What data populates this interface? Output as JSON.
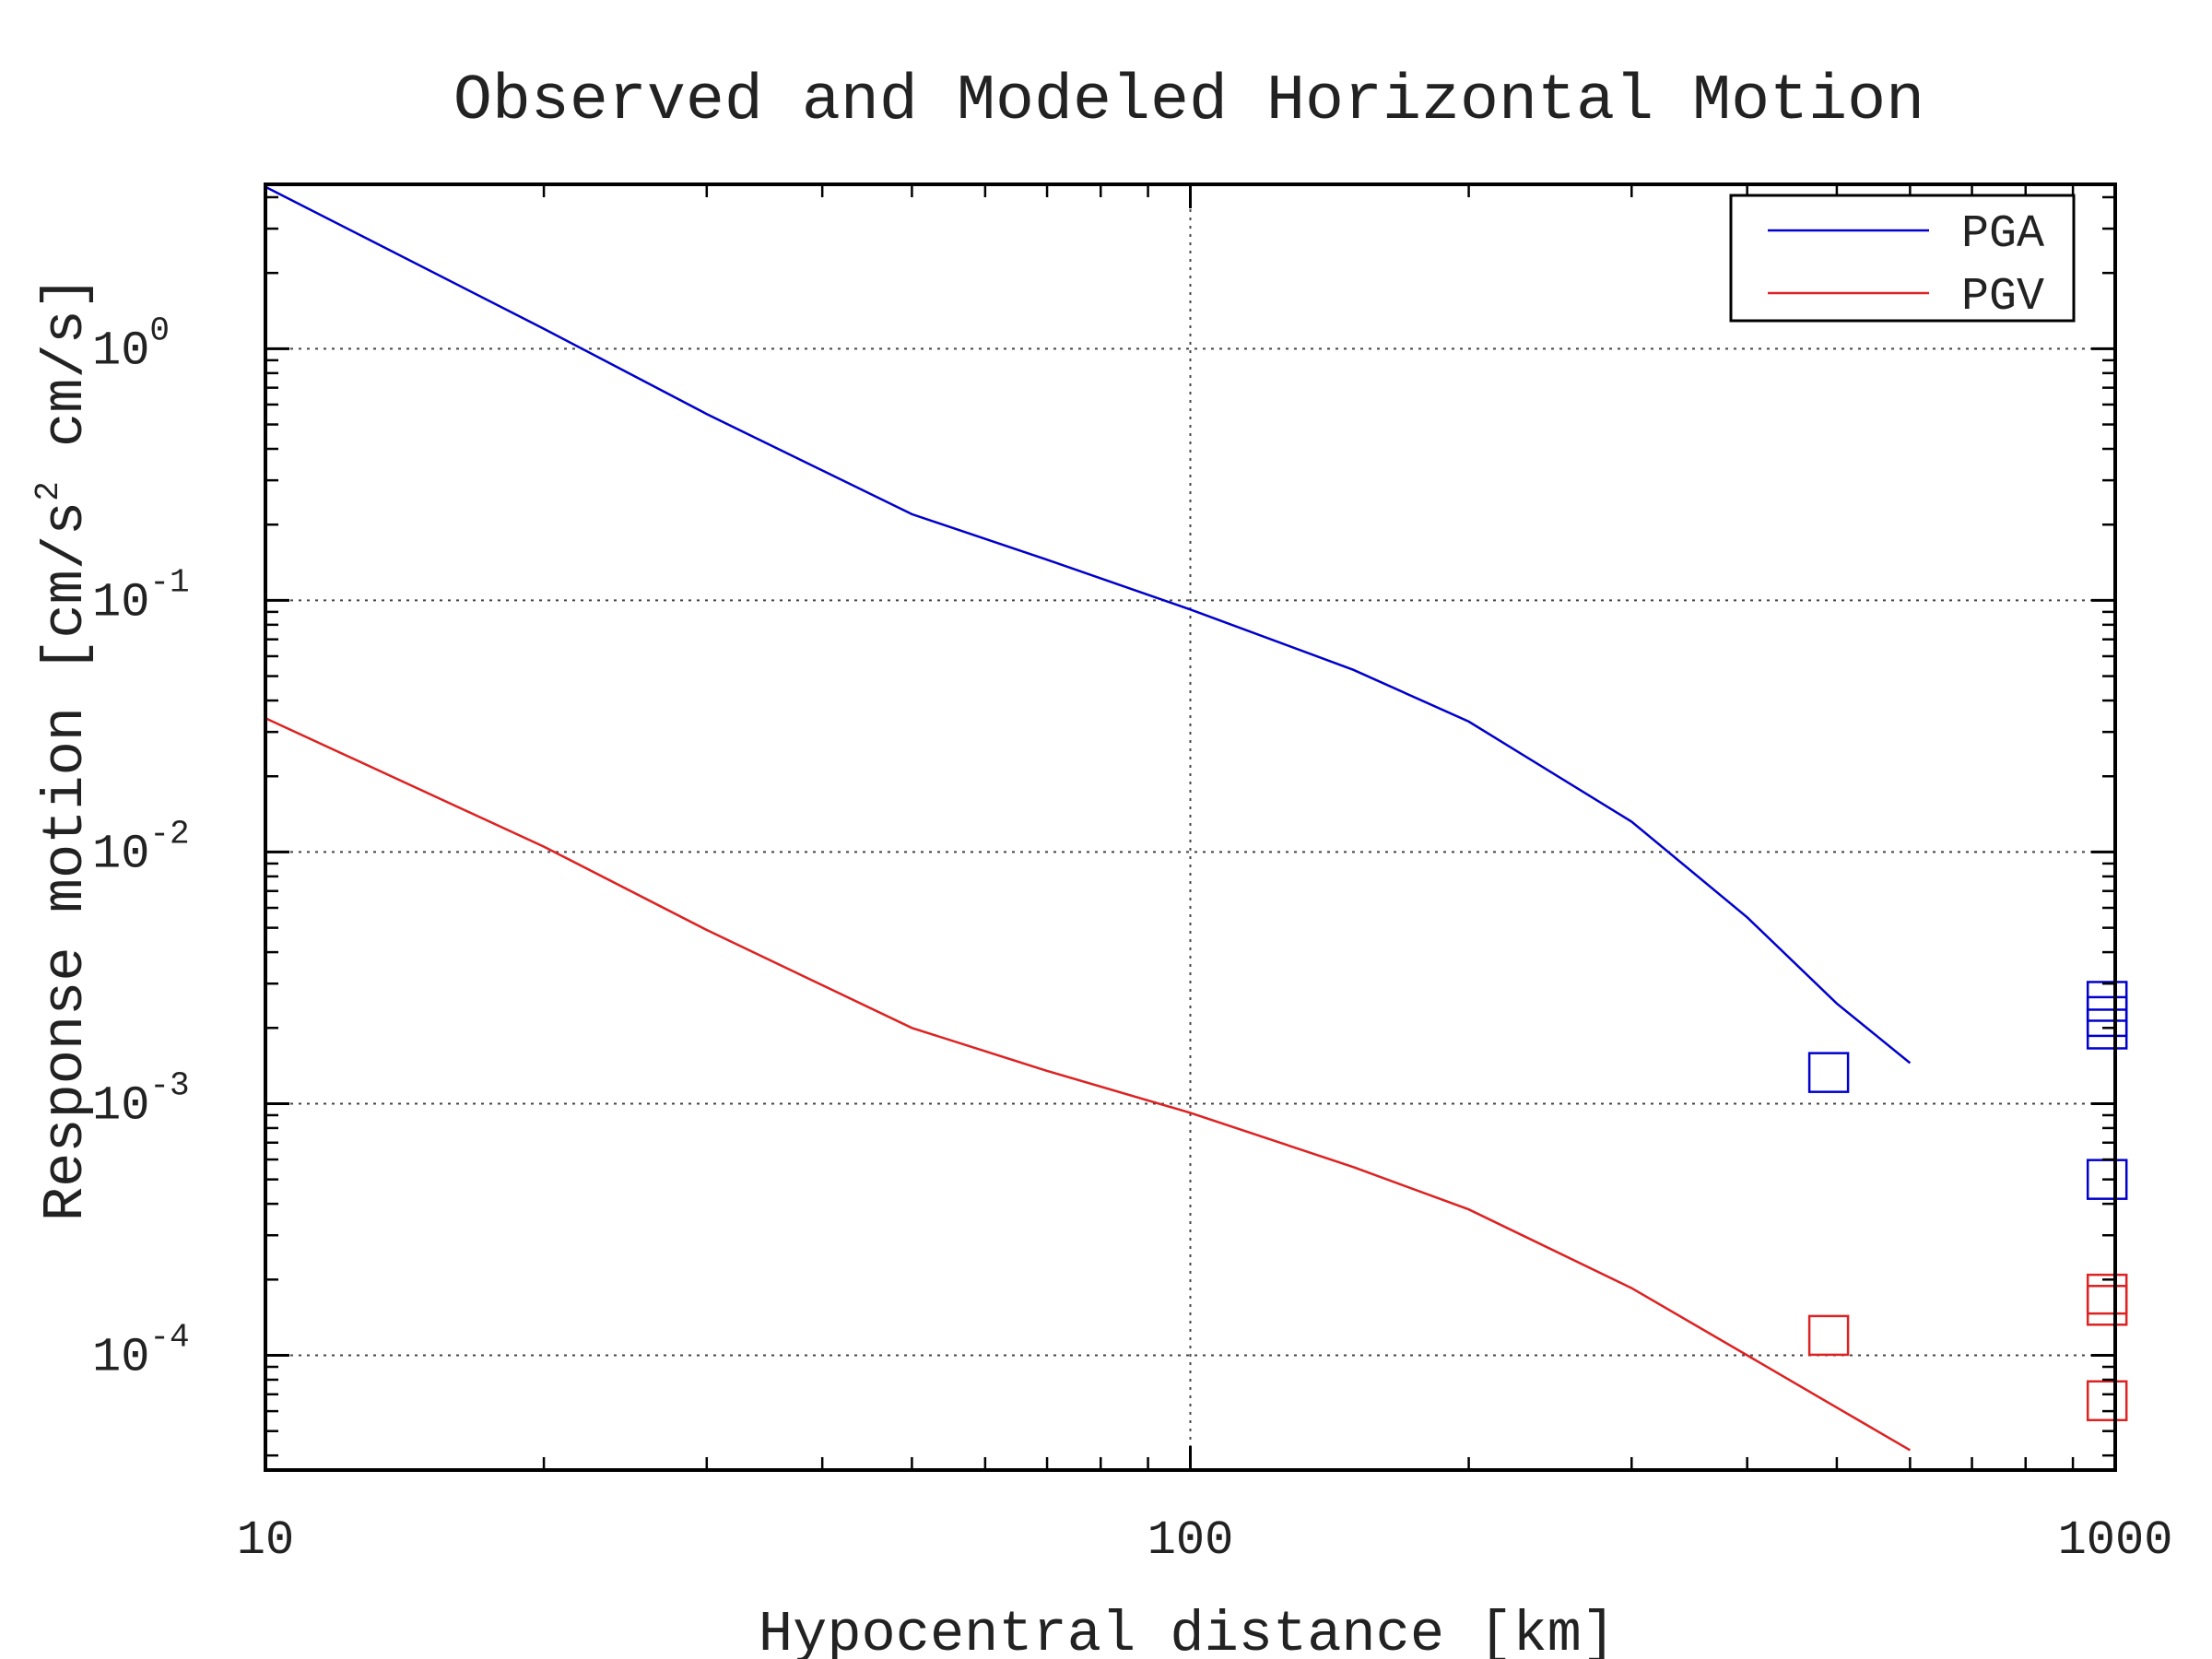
{
  "chart_data": {
    "type": "line",
    "title": "Observed and Modeled Horizontal Motion",
    "xlabel": "Hypocentral distance [km]",
    "ylabel_main": "Response motion  [cm/s",
    "ylabel_sup": "2",
    "ylabel_tail": "  cm/s]",
    "x_scale": "log",
    "y_scale": "log",
    "xlim": [
      10,
      1000
    ],
    "ylim": [
      3.5e-05,
      4.5
    ],
    "x_ticks": [
      {
        "value": 10,
        "label": "10"
      },
      {
        "value": 100,
        "label": "100"
      },
      {
        "value": 1000,
        "label": "1000"
      }
    ],
    "y_ticks": [
      {
        "value": 0.0001,
        "base": "10",
        "exp": "-4"
      },
      {
        "value": 0.001,
        "base": "10",
        "exp": "-3"
      },
      {
        "value": 0.01,
        "base": "10",
        "exp": "-2"
      },
      {
        "value": 0.1,
        "base": "10",
        "exp": "-1"
      },
      {
        "value": 1,
        "base": "10",
        "exp": "0"
      }
    ],
    "grid": true,
    "legend_position": "top-right",
    "series": [
      {
        "name": "PGA",
        "color": "#0000cc",
        "x": [
          10,
          20,
          30,
          50,
          70,
          100,
          150,
          200,
          300,
          400,
          500,
          600
        ],
        "y": [
          4.4,
          1.2,
          0.55,
          0.22,
          0.145,
          0.092,
          0.053,
          0.033,
          0.0132,
          0.0055,
          0.0025,
          0.00145
        ],
        "observed": {
          "x": [
            490,
            980,
            980,
            980,
            980
          ],
          "y": [
            0.00133,
            0.00255,
            0.00222,
            0.00198,
            0.0005
          ]
        }
      },
      {
        "name": "PGV",
        "color": "#dd2222",
        "x": [
          10,
          20,
          30,
          50,
          70,
          100,
          150,
          200,
          300,
          400,
          500,
          600
        ],
        "y": [
          0.034,
          0.0105,
          0.0049,
          0.002,
          0.00135,
          0.00092,
          0.00056,
          0.00038,
          0.000185,
          0.0001,
          6.2e-05,
          4.2e-05
        ],
        "observed": {
          "x": [
            490,
            980,
            980,
            980
          ],
          "y": [
            0.00012,
            0.000175,
            0.000158,
            6.6e-05
          ]
        }
      }
    ]
  }
}
